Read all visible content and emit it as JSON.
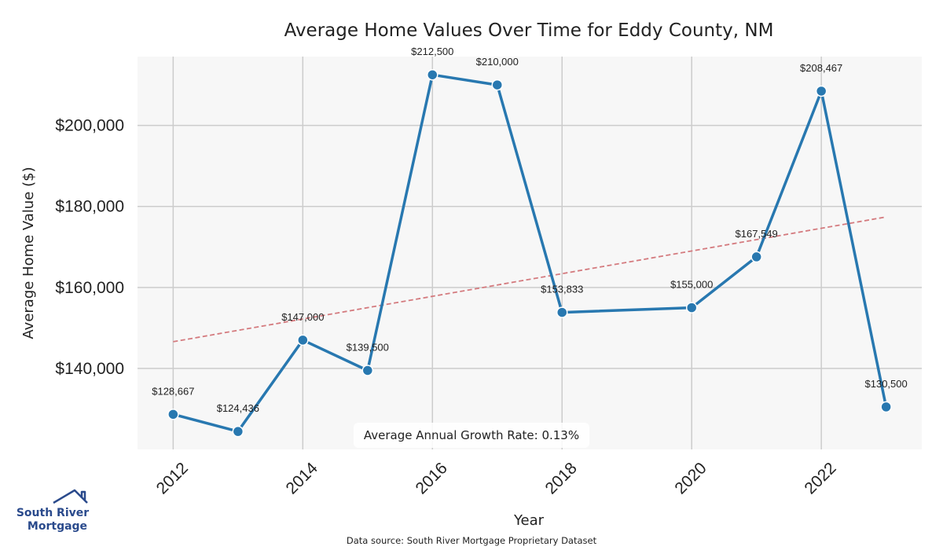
{
  "chart_data": {
    "type": "line",
    "title": "Average Home Values Over Time for Eddy County, NM",
    "xlabel": "Year",
    "ylabel": "Average Home Value ($)",
    "xlim": [
      2011.45,
      2023.55
    ],
    "ylim": [
      120000,
      217000
    ],
    "xticks": [
      2012,
      2014,
      2016,
      2018,
      2020,
      2022
    ],
    "yticks": [
      140000,
      160000,
      180000,
      200000
    ],
    "ytick_labels": [
      "$140,000",
      "$160,000",
      "$180,000",
      "$200,000"
    ],
    "grid": true,
    "series": [
      {
        "name": "Average Home Value",
        "color": "#2878b0",
        "x": [
          2012,
          2013,
          2014,
          2015,
          2016,
          2017,
          2018,
          2020,
          2021,
          2022,
          2023
        ],
        "values": [
          128667,
          124436,
          147000,
          139500,
          212500,
          210000,
          153833,
          155000,
          167549,
          208467,
          130500
        ],
        "labels": [
          "$128,667",
          "$124,436",
          "$147,000",
          "$139,500",
          "$212,500",
          "$210,000",
          "$153,833",
          "$155,000",
          "$167,549",
          "$208,467",
          "$130,500"
        ]
      }
    ],
    "trendline": {
      "name": "Trend",
      "color": "#d47a7e",
      "x": [
        2012,
        2023
      ],
      "values": [
        146600,
        177400
      ]
    },
    "annotation": "Average Annual Growth Rate: 0.13%",
    "source": "Data source: South River Mortgage Proprietary Dataset"
  },
  "logo": {
    "line1": "South River",
    "line2": "Mortgage"
  },
  "colors": {
    "plot_bg": "#f7f7f7",
    "grid": "#cccccc",
    "line": "#2878b0",
    "trend": "#d47a7e",
    "logo": "#2a4a8c"
  }
}
